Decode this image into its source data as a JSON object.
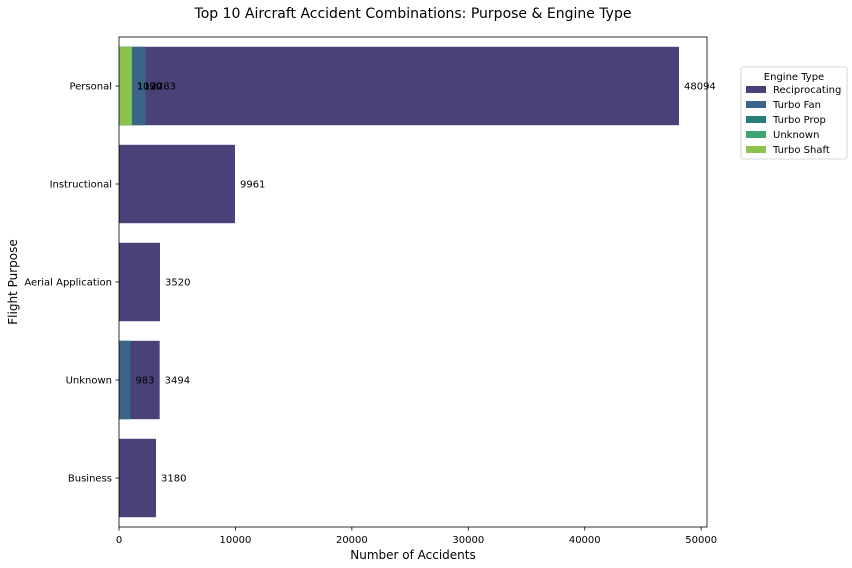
{
  "chart_data": {
    "type": "bar",
    "orientation": "horizontal",
    "stacking": "overlay",
    "title": "Top 10 Aircraft Accident Combinations: Purpose & Engine Type",
    "xlabel": "Number of Accidents",
    "ylabel": "Flight Purpose",
    "xlim": [
      0,
      50500
    ],
    "xticks": [
      0,
      10000,
      20000,
      30000,
      40000,
      50000
    ],
    "categories": [
      "Personal",
      "Instructional",
      "Aerial Application",
      "Unknown",
      "Business"
    ],
    "legend": {
      "title": "Engine Type",
      "placement": "upper-right-outside"
    },
    "series": [
      {
        "name": "Reciprocating",
        "color": "#4a4178",
        "values": [
          48094,
          9961,
          3520,
          3494,
          3180
        ]
      },
      {
        "name": "Turbo Fan",
        "color": "#3a6588",
        "values": [
          2283,
          null,
          null,
          983,
          null
        ]
      },
      {
        "name": "Turbo Prop",
        "color": "#297d79",
        "values": [
          1130,
          null,
          null,
          null,
          null
        ]
      },
      {
        "name": "Unknown",
        "color": "#3fa471",
        "values": [
          1120,
          null,
          null,
          null,
          null
        ]
      },
      {
        "name": "Turbo Shaft",
        "color": "#8bc34e",
        "values": [
          1090,
          null,
          null,
          null,
          null
        ]
      }
    ],
    "data_labels": [
      {
        "category": "Personal",
        "text": "48094"
      },
      {
        "category": "Personal",
        "text": "2283"
      },
      {
        "category": "Personal",
        "text": "1130"
      },
      {
        "category": "Personal",
        "text": "1120"
      },
      {
        "category": "Personal",
        "text": "1090"
      },
      {
        "category": "Instructional",
        "text": "9961"
      },
      {
        "category": "Aerial Application",
        "text": "3520"
      },
      {
        "category": "Unknown",
        "text": "983"
      },
      {
        "category": "Unknown",
        "text": "3494"
      },
      {
        "category": "Business",
        "text": "3180"
      }
    ]
  }
}
